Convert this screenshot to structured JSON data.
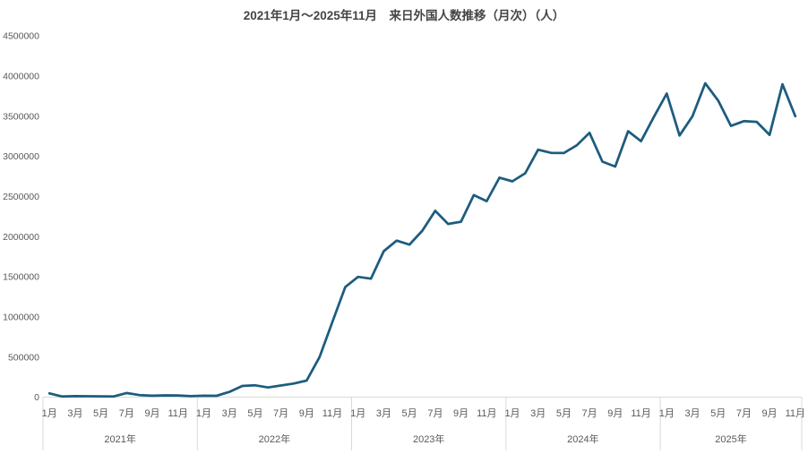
{
  "chart_data": {
    "type": "line",
    "title": "2021年1月～2025年11月　来日外国人数推移（月次）（人）",
    "xlabel": "",
    "ylabel": "",
    "ylim": [
      0,
      4500000
    ],
    "y_tick_step": 500000,
    "y_tick_labels": [
      "0",
      "500000",
      "1000000",
      "1500000",
      "2000000",
      "2500000",
      "3000000",
      "3500000",
      "4000000",
      "4500000"
    ],
    "month_tick_labels": [
      "1月",
      "3月",
      "5月",
      "7月",
      "9月",
      "11月"
    ],
    "grid": false,
    "legend": false,
    "colors": {
      "line": "#1d5c7e",
      "axis": "#d9d9d9",
      "tick_label": "#595959",
      "title": "#444444",
      "background": "#ffffff"
    },
    "series": [
      {
        "year_groups": [
          {
            "year_label": "2021年",
            "values": [
              46500,
              7400,
              12300,
              10900,
              10000,
              9300,
              51100,
              25900,
              17700,
              22100,
              20700,
              12100
            ]
          },
          {
            "year_label": "2022年",
            "values": [
              17800,
              16700,
              66100,
              139500,
              147000,
              120400,
              144600,
              169900,
              206600,
              498600,
              934500,
              1370100
            ]
          },
          {
            "year_label": "2023年",
            "values": [
              1497300,
              1475300,
              1817500,
              1949100,
              1898900,
              2073300,
              2320600,
              2156900,
              2184300,
              2516500,
              2440800,
              2734000
            ]
          },
          {
            "year_label": "2024年",
            "values": [
              2688100,
              2788000,
              3081600,
              3042900,
              3040100,
              3135600,
              3292500,
              2933000,
              2872200,
              3312000,
              3187000,
              3489800
            ]
          },
          {
            "year_label": "2025年",
            "values": [
              3781200,
              3258800,
              3497600,
              3908900,
              3693300,
              3377800,
              3437000,
              3428000,
              3266800,
              3896300,
              3500000
            ]
          }
        ]
      }
    ]
  }
}
